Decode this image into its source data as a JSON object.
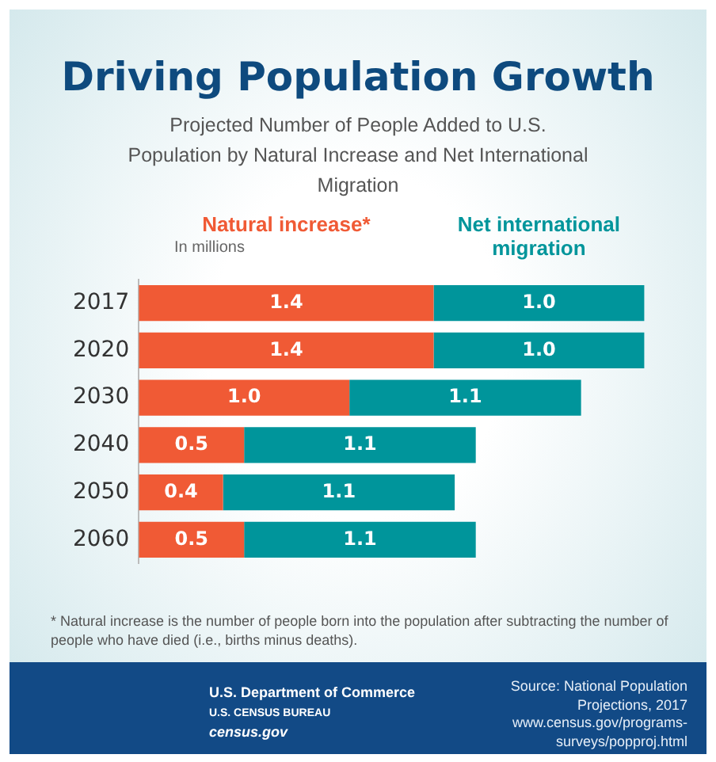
{
  "chart_data": {
    "type": "bar",
    "orientation": "horizontal",
    "stacked": true,
    "legend": "top",
    "grid": false,
    "tick_labels": "y",
    "title": "Driving Population Growth",
    "subtitle": "Projected Number of People Added to U.S. Population by Natural Increase and Net International Migration",
    "categories": [
      "2017",
      "2020",
      "2030",
      "2040",
      "2050",
      "2060"
    ],
    "series": [
      {
        "name": "Natural increase*",
        "color": "#f05a35",
        "values": [
          1.4,
          1.4,
          1.0,
          0.5,
          0.4,
          0.5
        ],
        "value_labels": [
          "1.4",
          "1.4",
          "1.0",
          "0.5",
          "0.4",
          "0.5"
        ]
      },
      {
        "name": "Net international migration",
        "color": "#00959b",
        "values": [
          1.0,
          1.0,
          1.1,
          1.1,
          1.1,
          1.1
        ],
        "value_labels": [
          "1.0",
          "1.0",
          "1.1",
          "1.1",
          "1.1",
          "1.1"
        ]
      }
    ],
    "annotations": [
      "In millions",
      "* Natural increase is the number of people born into the population after subtracting the number of people who have died (i.e., births minus deaths).",
      "U.S. Department of Commerce",
      "U.S. CENSUS BUREAU",
      "census.gov",
      "Source: National Population Projections, 2017 www.census.gov/programs-surveys/popproj.html"
    ]
  }
}
